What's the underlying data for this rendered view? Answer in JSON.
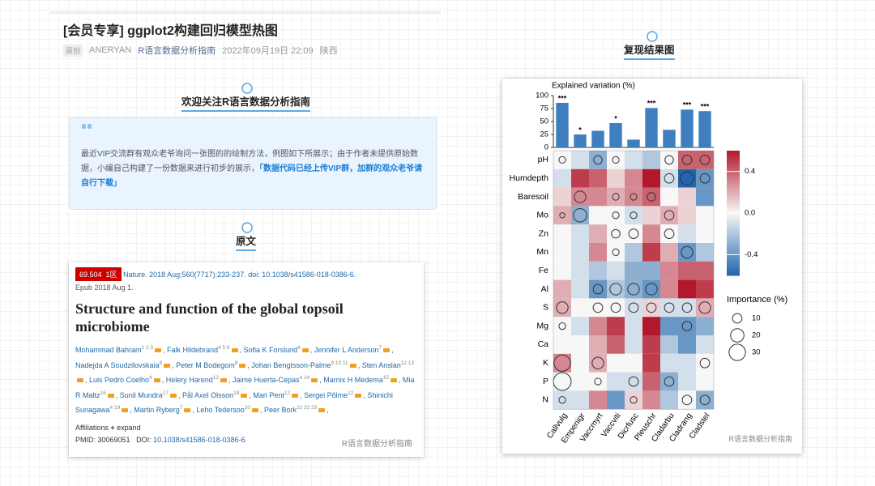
{
  "article": {
    "title": "[会员专享] ggplot2构建回归模型热图",
    "meta": {
      "tag": "原创",
      "author": "ANERYAN",
      "account": "R语言数据分析指南",
      "date": "2022年09月19日 22:09",
      "location": "陕西"
    }
  },
  "welcome": {
    "heading": "欢迎关注R语言数据分析指南",
    "quote": "最近VIP交流群有观众老爷询问一张图的的绘制方法，例图如下所展示；由于作者未提供原始数据，小编自己构建了一份数据来进行初步的展示，",
    "highlight": "「数据代码已经上传VIP群，加群的观众老爷请自行下载」"
  },
  "original": {
    "heading": "原文",
    "paper": {
      "impact": "69.504",
      "zone": "1区",
      "citation": "Nature. 2018 Aug;560(7717):233-237. doi: 10.1038/s41586-018-0386-6.",
      "epub": "Epub 2018 Aug 1.",
      "title": "Structure and function of the global topsoil microbiome",
      "authors": [
        {
          "name": "Mohammad Bahram",
          "sup": "1 2 3"
        },
        {
          "name": "Falk Hildebrand",
          "sup": "4 5 6"
        },
        {
          "name": "Sofia K Forslund",
          "sup": "4"
        },
        {
          "name": "Jennifer L Anderson",
          "sup": "7"
        },
        {
          "name": "Nadejda A Soudzilovskaia",
          "sup": "8"
        },
        {
          "name": "Peter M Bodegom",
          "sup": "8"
        },
        {
          "name": "Johan Bengtsson-Palme",
          "sup": "9 10 11"
        },
        {
          "name": "Sten Anslan",
          "sup": "12 13"
        },
        {
          "name": "Luis Pedro Coelho",
          "sup": "4"
        },
        {
          "name": "Helery Harend",
          "sup": "12"
        },
        {
          "name": "Jaime Huerta-Cepas",
          "sup": "4 14"
        },
        {
          "name": "Marnix H Medema",
          "sup": "15"
        },
        {
          "name": "Mia R Maltz",
          "sup": "16"
        },
        {
          "name": "Sunil Mundra",
          "sup": "17"
        },
        {
          "name": "Pål Axel Olsson",
          "sup": "18"
        },
        {
          "name": "Mari Pent",
          "sup": "12"
        },
        {
          "name": "Sergei Põlme",
          "sup": "12"
        },
        {
          "name": "Shinichi Sunagawa",
          "sup": "4 19"
        },
        {
          "name": "Martin Ryberg",
          "sup": "7"
        },
        {
          "name": "Leho Tedersoo",
          "sup": "20"
        },
        {
          "name": "Peer Bork",
          "sup": "21 22 23"
        }
      ],
      "affiliations": "Affiliations",
      "expand": "expand",
      "pmid": "PMID: 30069051",
      "doi_label": "DOI:",
      "doi": "10.1038/s41586-018-0386-6"
    },
    "watermark": "R语言数据分析指南"
  },
  "result": {
    "heading": "复现结果图",
    "watermark": "R语言数据分析指南"
  },
  "chart_data": {
    "type": "heatmap",
    "title": "Explained variation (%)",
    "categories": [
      "Callvulg",
      "Empenigr",
      "Vaccmyrt",
      "Vaccviti",
      "Dicrfusc",
      "Pleuschr",
      "Cladarbu",
      "Cladrang",
      "Cladstel"
    ],
    "bar_values": [
      86,
      25,
      32,
      47,
      15,
      76,
      34,
      73,
      70
    ],
    "significance": [
      "***",
      "*",
      null,
      "*",
      null,
      "***",
      null,
      "***",
      "***"
    ],
    "bar_color": "#3f7fbf",
    "ylim": [
      0,
      100
    ],
    "yticks": [
      0,
      25,
      50,
      75,
      100
    ],
    "rows": [
      "pH",
      "Humdepth",
      "Baresoil",
      "Mo",
      "Zn",
      "Mn",
      "Fe",
      "Al",
      "S",
      "Mg",
      "Ca",
      "K",
      "P",
      "N"
    ],
    "values": [
      [
        0,
        -0.1,
        -0.3,
        0,
        -0.1,
        -0.2,
        0,
        0.4,
        0.4
      ],
      [
        -0.1,
        0.5,
        0.4,
        0.1,
        0.3,
        0.6,
        -0.1,
        -0.6,
        -0.4
      ],
      [
        0.1,
        0.3,
        0.3,
        0.2,
        0.3,
        0.4,
        0,
        0.1,
        -0.4
      ],
      [
        0.2,
        -0.3,
        0,
        0,
        -0.1,
        0.1,
        0.2,
        0.1,
        0
      ],
      [
        0,
        -0.1,
        0.2,
        0,
        0,
        0.3,
        0,
        -0.1,
        0
      ],
      [
        0,
        -0.1,
        0.3,
        0,
        -0.2,
        0.5,
        0.2,
        -0.4,
        -0.2
      ],
      [
        0,
        -0.1,
        -0.2,
        -0.1,
        -0.3,
        -0.3,
        0.3,
        0.4,
        0.4
      ],
      [
        0.2,
        -0.1,
        -0.4,
        -0.2,
        -0.3,
        -0.4,
        0.3,
        0.6,
        0.5
      ],
      [
        0.2,
        0,
        0,
        0,
        -0.1,
        0.1,
        -0.1,
        -0.1,
        0.2
      ],
      [
        0,
        -0.1,
        0.3,
        0.5,
        -0.1,
        0.6,
        -0.4,
        -0.4,
        -0.3
      ],
      [
        0,
        0,
        0.2,
        0.4,
        -0.1,
        0.5,
        -0.2,
        -0.4,
        -0.1
      ],
      [
        0.3,
        0,
        0.2,
        0,
        0,
        0.5,
        -0.1,
        -0.1,
        0
      ],
      [
        0,
        0,
        0,
        -0.1,
        -0.1,
        0.4,
        -0.3,
        -0.1,
        0
      ],
      [
        -0.1,
        -0.1,
        0.3,
        -0.4,
        0.1,
        0.3,
        -0.2,
        0,
        -0.3
      ]
    ],
    "importance": [
      [
        5,
        null,
        8,
        5,
        null,
        null,
        8,
        10,
        10
      ],
      [
        null,
        null,
        null,
        null,
        null,
        null,
        10,
        20,
        10
      ],
      [
        null,
        15,
        null,
        5,
        5,
        8,
        null,
        null,
        null
      ],
      [
        3,
        20,
        null,
        5,
        5,
        null,
        10,
        null,
        null
      ],
      [
        null,
        null,
        null,
        8,
        10,
        null,
        10,
        null,
        null
      ],
      [
        null,
        null,
        null,
        5,
        null,
        null,
        null,
        15,
        null
      ],
      [
        null,
        null,
        null,
        null,
        null,
        null,
        null,
        null,
        null
      ],
      [
        null,
        null,
        10,
        15,
        15,
        15,
        null,
        null,
        null
      ],
      [
        15,
        null,
        10,
        10,
        10,
        10,
        10,
        10,
        15
      ],
      [
        5,
        null,
        null,
        null,
        null,
        null,
        null,
        10,
        null
      ],
      [
        null,
        null,
        null,
        null,
        null,
        null,
        null,
        null,
        null
      ],
      [
        30,
        null,
        15,
        null,
        null,
        null,
        null,
        null,
        10
      ],
      [
        35,
        null,
        5,
        null,
        10,
        null,
        10,
        null,
        null
      ],
      [
        5,
        null,
        null,
        null,
        5,
        null,
        null,
        10,
        10
      ]
    ],
    "colorbar": {
      "lim": [
        -0.6,
        0.6
      ],
      "ticks": [
        0.4,
        {
          "value": 0,
          "label": "0.0"
        },
        -0.4
      ],
      "colors": [
        "#2166ac",
        "#f7f7f7",
        "#b2182b"
      ]
    },
    "size_legend": {
      "title": "Importance (%)",
      "values": [
        10,
        20,
        30
      ]
    }
  }
}
